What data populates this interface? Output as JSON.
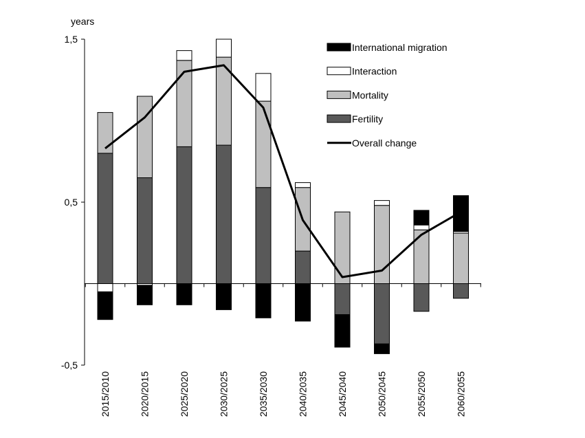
{
  "chart_data": {
    "type": "bar",
    "stacked": true,
    "title": "",
    "xlabel": "",
    "ylabel": "years",
    "ylim": [
      -0.5,
      1.5
    ],
    "yticks": [
      {
        "value": 1.5,
        "label": "1,5"
      },
      {
        "value": 0.5,
        "label": "0,5"
      },
      {
        "value": -0.5,
        "label": "-0,5"
      }
    ],
    "categories": [
      "2015/2010",
      "2020/2015",
      "2025/2020",
      "2030/2025",
      "2035/2030",
      "2040/2035",
      "2045/2040",
      "2050/2045",
      "2055/2050",
      "2060/2055"
    ],
    "legend_position": "top-right",
    "series": [
      {
        "name": "Fertility",
        "kind": "bar",
        "color": "#595959",
        "values": [
          0.8,
          0.65,
          0.84,
          0.85,
          0.59,
          0.2,
          -0.19,
          -0.37,
          -0.17,
          -0.09
        ]
      },
      {
        "name": "Mortality",
        "kind": "bar",
        "color": "#bfbfbf",
        "values": [
          0.25,
          0.5,
          0.53,
          0.54,
          0.53,
          0.39,
          0.44,
          0.48,
          0.33,
          0.31
        ]
      },
      {
        "name": "Interaction",
        "kind": "bar",
        "color": "#ffffff",
        "values": [
          -0.05,
          -0.01,
          0.06,
          0.11,
          0.17,
          0.03,
          0.0,
          0.03,
          0.03,
          0.01
        ]
      },
      {
        "name": "International migration",
        "kind": "bar",
        "color": "#000000",
        "values": [
          -0.17,
          -0.12,
          -0.13,
          -0.16,
          -0.21,
          -0.23,
          -0.2,
          -0.06,
          0.09,
          0.22
        ]
      },
      {
        "name": "Overall change",
        "kind": "line",
        "color": "#000000",
        "values": [
          0.83,
          1.02,
          1.3,
          1.34,
          1.08,
          0.39,
          0.04,
          0.08,
          0.3,
          0.44
        ]
      }
    ]
  }
}
